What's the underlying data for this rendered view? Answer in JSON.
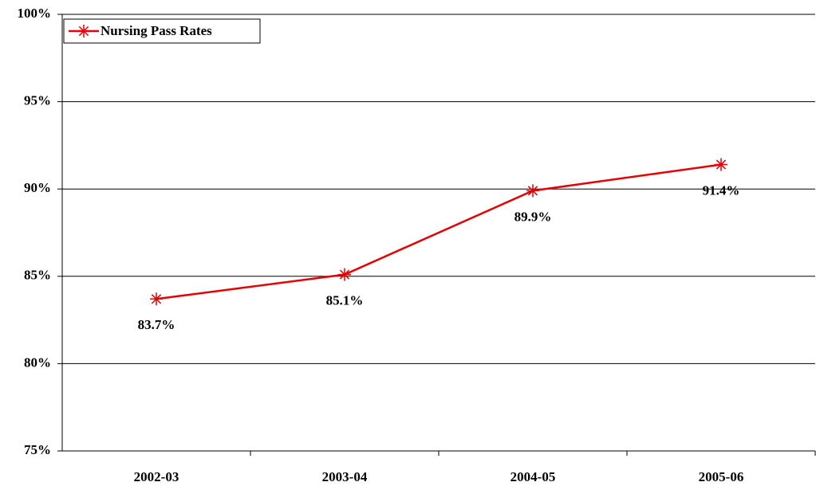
{
  "chart_data": {
    "type": "line",
    "categories": [
      "2002-03",
      "2003-04",
      "2004-05",
      "2005-06"
    ],
    "series": [
      {
        "name": "Nursing Pass Rates",
        "color": "#e60000",
        "values": [
          83.7,
          85.1,
          89.9,
          91.4
        ],
        "value_labels": [
          "83.7%",
          "85.1%",
          "89.9%",
          "91.4%"
        ]
      }
    ],
    "ylim": [
      75,
      100
    ],
    "yticks": [
      {
        "value": 75,
        "label": "75%"
      },
      {
        "value": 80,
        "label": "80%"
      },
      {
        "value": 85,
        "label": "85%"
      },
      {
        "value": 90,
        "label": "90%"
      },
      {
        "value": 95,
        "label": "95%"
      },
      {
        "value": 100,
        "label": "100%"
      }
    ],
    "grid": true,
    "legend": "top-left"
  }
}
